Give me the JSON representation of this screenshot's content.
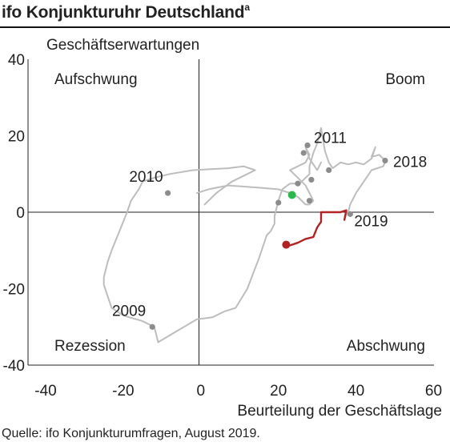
{
  "title": "ifo Konjunkturuhr Deutschland",
  "title_note": "a",
  "source": "Quelle:  ifo Konjunkturumfragen,  August 2019.",
  "chart_data": {
    "type": "line",
    "xlabel": "Beurteilung der Geschäftslage",
    "ylabel": "Geschäftserwartungen",
    "xlim": [
      -40,
      60
    ],
    "ylim": [
      -40,
      40
    ],
    "xticks": [
      "-40",
      "-20",
      "0",
      "20",
      "40",
      "60"
    ],
    "yticks": [
      "40",
      "20",
      "0",
      "-20",
      "-40"
    ],
    "quadrants": {
      "top_left": "Aufschwung",
      "top_right": "Boom",
      "bottom_left": "Rezession",
      "bottom_right": "Abschwung"
    },
    "colors": {
      "history": "#bdbdbd",
      "recent": "#b22222",
      "marker": "#8c8c8c",
      "highlight": "#2db84d"
    },
    "series": [
      {
        "values": [
          [
            1,
            2
          ],
          [
            4,
            5
          ],
          [
            8,
            8
          ],
          [
            12,
            10
          ],
          [
            14,
            11
          ],
          [
            11,
            12
          ],
          [
            7,
            11.5
          ],
          [
            -2,
            11
          ],
          [
            -8,
            10
          ],
          [
            -12,
            9
          ],
          [
            -15,
            8
          ],
          [
            -16,
            6
          ],
          [
            -18,
            3
          ],
          [
            -19,
            0
          ],
          [
            -21,
            -5
          ],
          [
            -23,
            -10
          ],
          [
            -24,
            -13
          ],
          [
            -25,
            -17
          ],
          [
            -25,
            -19
          ],
          [
            -24,
            -22
          ],
          [
            -23,
            -25
          ],
          [
            -20,
            -27
          ],
          [
            -15,
            -28.5
          ],
          [
            -12,
            -30
          ],
          [
            -11,
            -34
          ],
          [
            -6,
            -31
          ],
          [
            -1,
            -28
          ],
          [
            3,
            -27.5
          ],
          [
            6,
            -26
          ],
          [
            9,
            -25
          ],
          [
            12,
            -20
          ],
          [
            15,
            -12
          ],
          [
            17,
            -6
          ],
          [
            18,
            -5
          ],
          [
            19,
            -3
          ],
          [
            19,
            -1
          ],
          [
            20,
            3
          ],
          [
            21,
            6
          ],
          [
            23,
            7.5
          ],
          [
            25.5,
            7.5
          ],
          [
            27,
            9
          ],
          [
            28,
            10
          ],
          [
            28,
            12
          ],
          [
            29,
            15.5
          ],
          [
            30,
            18
          ],
          [
            31,
            22
          ],
          [
            32,
            16
          ],
          [
            33,
            13
          ],
          [
            34,
            11.5
          ],
          [
            36,
            13
          ],
          [
            38,
            12.5
          ],
          [
            40,
            13
          ],
          [
            42,
            12.5
          ],
          [
            44,
            14
          ],
          [
            45,
            17
          ],
          [
            44,
            14.5
          ],
          [
            46,
            15
          ],
          [
            47,
            14
          ],
          [
            47.5,
            13
          ],
          [
            47,
            12
          ],
          [
            44,
            11
          ],
          [
            42,
            8
          ],
          [
            40,
            5
          ],
          [
            38.5,
            2
          ],
          [
            38,
            0
          ],
          [
            37.5,
            -0.5
          ],
          [
            37,
            -2
          ]
        ]
      },
      {
        "values": [
          [
            -1,
            5
          ],
          [
            2,
            6
          ],
          [
            7,
            7
          ],
          [
            14,
            6.5
          ],
          [
            20,
            6
          ],
          [
            23,
            5
          ],
          [
            25,
            4
          ],
          [
            27,
            2
          ],
          [
            28,
            2
          ],
          [
            29,
            3
          ],
          [
            28,
            5
          ],
          [
            27,
            7
          ],
          [
            25,
            9
          ],
          [
            23,
            11
          ],
          [
            25,
            12
          ],
          [
            27,
            13
          ],
          [
            28,
            15
          ],
          [
            27,
            17
          ],
          [
            28,
            14
          ],
          [
            30,
            11
          ],
          [
            31,
            13
          ]
        ]
      },
      {
        "values": [
          [
            22,
            -9
          ],
          [
            25,
            -8
          ],
          [
            27,
            -7
          ],
          [
            29,
            -6.5
          ],
          [
            30,
            -4
          ],
          [
            31,
            -2.5
          ],
          [
            31,
            0
          ],
          [
            36,
            0
          ],
          [
            37.5,
            0.5
          ],
          [
            37,
            -2
          ]
        ]
      }
    ],
    "markers": [
      {
        "label": "2010",
        "x": -8.5,
        "y": 5
      },
      {
        "label": "2009",
        "x": -12.5,
        "y": -30
      },
      {
        "label": "2011",
        "x": 27.5,
        "y": 17.5
      },
      {
        "label": "2018",
        "x": 47.5,
        "y": 13.5
      },
      {
        "label": "2019",
        "x": 38.5,
        "y": -0.5
      },
      {
        "label": "",
        "x": 26.5,
        "y": 15.5
      },
      {
        "label": "",
        "x": 25,
        "y": 7.5
      },
      {
        "label": "",
        "x": 28.5,
        "y": 8.5
      },
      {
        "label": "",
        "x": 33,
        "y": 11
      },
      {
        "label": "",
        "x": 20,
        "y": 2.5
      },
      {
        "label": "",
        "x": 28,
        "y": 3
      }
    ],
    "current_point": {
      "x": 23.5,
      "y": 4.5
    },
    "end_point": {
      "x": 22,
      "y": -8.5
    }
  }
}
